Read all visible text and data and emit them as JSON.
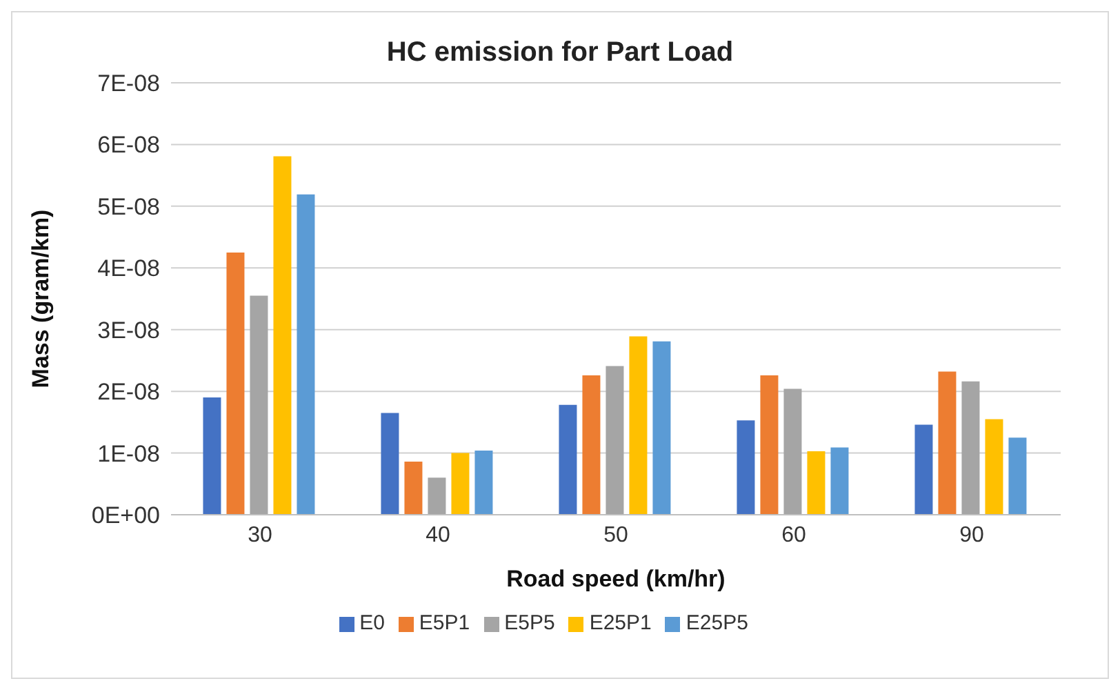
{
  "chart_data": {
    "type": "bar",
    "title": "HC emission for Part Load",
    "xlabel": "Road speed (km/hr)",
    "ylabel": "Mass (gram/km)",
    "categories": [
      "30",
      "40",
      "50",
      "60",
      "90"
    ],
    "series": [
      {
        "name": "E0",
        "color": "#4472c4",
        "values": [
          1.9e-08,
          1.65e-08,
          1.78e-08,
          1.53e-08,
          1.46e-08
        ]
      },
      {
        "name": "E5P1",
        "color": "#ed7d31",
        "values": [
          4.25e-08,
          8.6e-09,
          2.26e-08,
          2.26e-08,
          2.32e-08
        ]
      },
      {
        "name": "E5P5",
        "color": "#a5a5a5",
        "values": [
          3.55e-08,
          6e-09,
          2.41e-08,
          2.04e-08,
          2.16e-08
        ]
      },
      {
        "name": "E25P1",
        "color": "#ffc000",
        "values": [
          5.81e-08,
          1e-08,
          2.89e-08,
          1.03e-08,
          1.55e-08
        ]
      },
      {
        "name": "E25P5",
        "color": "#5b9bd5",
        "values": [
          5.19e-08,
          1.04e-08,
          2.81e-08,
          1.09e-08,
          1.25e-08
        ]
      }
    ],
    "ylim": [
      0,
      7e-08
    ],
    "yticks": [
      {
        "value": 0,
        "label": "0E+00"
      },
      {
        "value": 1e-08,
        "label": "1E-08"
      },
      {
        "value": 2e-08,
        "label": "2E-08"
      },
      {
        "value": 3e-08,
        "label": "3E-08"
      },
      {
        "value": 4e-08,
        "label": "4E-08"
      },
      {
        "value": 5e-08,
        "label": "5E-08"
      },
      {
        "value": 6e-08,
        "label": "6E-08"
      },
      {
        "value": 7e-08,
        "label": "7E-08"
      }
    ],
    "grid": "y",
    "legend": "bottom"
  }
}
